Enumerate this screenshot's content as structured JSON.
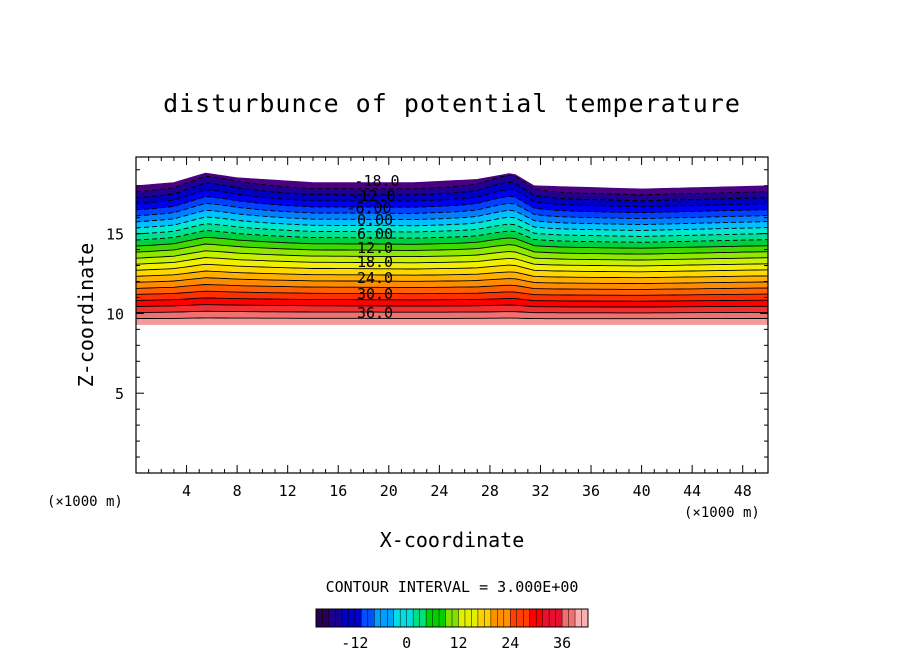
{
  "chart_data": {
    "type": "contour",
    "title": "disturbunce of potential temperature",
    "xlabel": "X-coordinate",
    "ylabel": "Z-coordinate",
    "x_unit_label_left": "(×1000 m)",
    "x_unit_label_right": "(×1000 m)",
    "xlim": [
      0,
      50
    ],
    "ylim": [
      0,
      19.8
    ],
    "xticks": [
      "4",
      "8",
      "12",
      "16",
      "20",
      "24",
      "28",
      "32",
      "36",
      "40",
      "44",
      "48"
    ],
    "yticks": [
      "5",
      "10",
      "15"
    ],
    "contour_interval_label": "CONTOUR INTERVAL = 3.000E+00",
    "contour_labels": [
      "-18.0",
      "-12.0",
      "-6.00",
      "0.00",
      "6.00",
      "12.0",
      "18.0",
      "24.0",
      "30.0",
      "36.0"
    ],
    "levels": [
      -18,
      -15,
      -12,
      -9,
      -6,
      -3,
      0,
      3,
      6,
      9,
      12,
      15,
      18,
      21,
      24,
      27,
      30,
      33,
      36,
      39
    ],
    "colorbar_ticks": [
      "-12",
      "0",
      "12",
      "24",
      "36"
    ],
    "colorbar_tick_values": [
      -12,
      0,
      12,
      24,
      36
    ],
    "colorbar_range": [
      -21,
      42
    ],
    "colorbar_colors": [
      "#2a0050",
      "#1a0090",
      "#0000c8",
      "#0050ff",
      "#00a0ff",
      "#00e0e0",
      "#00e080",
      "#00d000",
      "#80e000",
      "#e0f000",
      "#ffd000",
      "#ff9000",
      "#ff4000",
      "#ff0000",
      "#e81030",
      "#f07070",
      "#f8b0b0"
    ],
    "band_colors": [
      "#f39a9a",
      "#f37070",
      "#f03030",
      "#ff0000",
      "#ff3000",
      "#ff6000",
      "#ff8c00",
      "#ffb000",
      "#ffd800",
      "#f0f000",
      "#c8f000",
      "#90e800",
      "#40d800",
      "#00d040",
      "#00e090",
      "#00e8d0",
      "#00c0ff",
      "#0080ff",
      "#0040ff",
      "#0000f0",
      "#0000c0",
      "#200090",
      "#4a0080"
    ],
    "domain_top_profile": [
      [
        0,
        18.0
      ],
      [
        3,
        18.2
      ],
      [
        5.5,
        18.8
      ],
      [
        8,
        18.5
      ],
      [
        14,
        18.2
      ],
      [
        22,
        18.2
      ],
      [
        27,
        18.4
      ],
      [
        29.8,
        18.8
      ],
      [
        31.5,
        18.0
      ],
      [
        40,
        17.8
      ],
      [
        50,
        18.0
      ]
    ],
    "field_bottom_z": 9.3
  }
}
